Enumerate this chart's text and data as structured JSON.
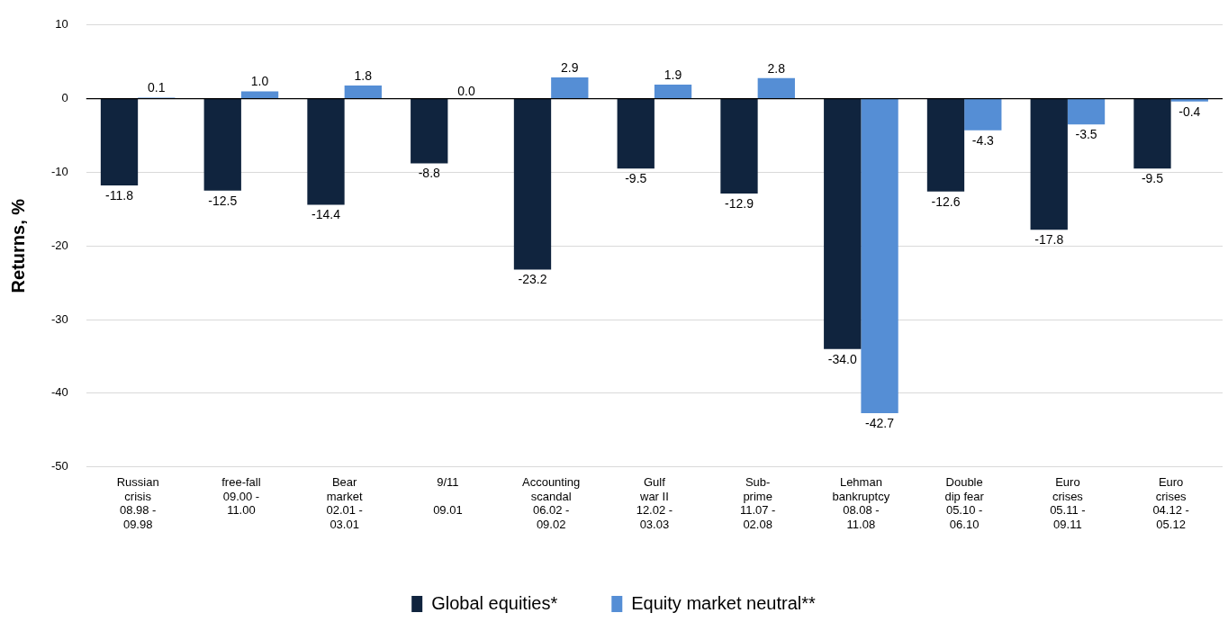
{
  "chart_data": {
    "type": "bar",
    "ylabel": "Returns, %",
    "categories": [
      "Russian\ncrisis\n08.98 -\n09.98",
      "free-fall\n09.00 -\n11.00",
      "Bear\nmarket\n02.01 -\n03.01",
      "9/11\n\n09.01",
      "Accounting\nscandal\n06.02 -\n09.02",
      "Gulf\nwar II\n12.02 -\n03.03",
      "Sub-\nprime\n11.07 -\n02.08",
      "Lehman\nbankruptcy\n08.08 -\n11.08",
      "Double\ndip fear\n05.10 -\n06.10",
      "Euro\ncrises\n05.11 -\n09.11",
      "Euro\ncrises\n04.12 -\n05.12"
    ],
    "series": [
      {
        "name": "Global equities*",
        "color": "#10243e",
        "values": [
          -11.8,
          -12.5,
          -14.4,
          -8.8,
          -23.2,
          -9.5,
          -12.9,
          -34.0,
          -12.6,
          -17.8,
          -9.5
        ],
        "value_labels": [
          "-11.8",
          "-12.5",
          "-14.4",
          "-8.8",
          "-23.2",
          "-9.5",
          "-12.9",
          "-34.0",
          "-12.6",
          "-17.8",
          "-9.5"
        ]
      },
      {
        "name": "Equity market neutral**",
        "color": "#558ed5",
        "values": [
          0.1,
          1.0,
          1.8,
          0.0,
          2.9,
          1.9,
          2.8,
          -42.7,
          -4.3,
          -3.5,
          -0.4
        ],
        "value_labels": [
          "0.1",
          "1.0",
          "1.8",
          "0.0",
          "2.9",
          "1.9",
          "2.8",
          "-42.7",
          "-4.3",
          "-3.5",
          "-0.4"
        ]
      }
    ],
    "ylim": [
      -50,
      10
    ],
    "yticks": [
      -50,
      -40,
      -30,
      -20,
      -10,
      0,
      10
    ],
    "grid": "y",
    "legend": "bottom",
    "ref_lines": [
      {
        "axis": "y",
        "value": 0,
        "color": "#000000"
      }
    ]
  }
}
